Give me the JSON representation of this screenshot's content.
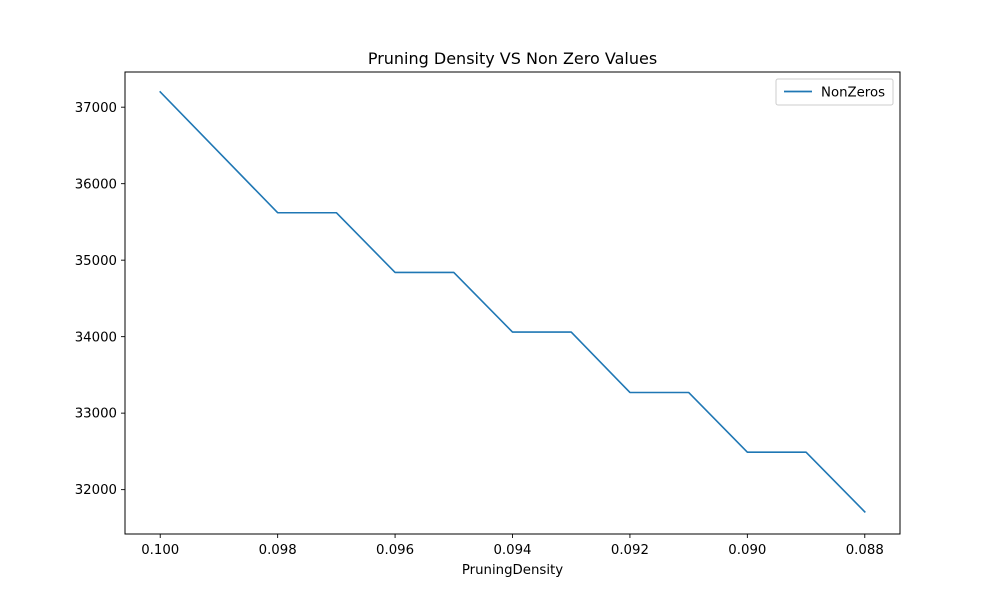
{
  "chart_data": {
    "type": "line",
    "title": "Pruning Density VS Non Zero Values",
    "xlabel": "PruningDensity",
    "ylabel": "",
    "x": [
      0.1,
      0.099,
      0.098,
      0.097,
      0.096,
      0.095,
      0.094,
      0.093,
      0.092,
      0.091,
      0.09,
      0.089,
      0.088
    ],
    "xlim": [
      0.1006,
      0.0874
    ],
    "x_reversed": true,
    "ylim": [
      31420,
      37460
    ],
    "xticks": [
      0.1,
      0.098,
      0.096,
      0.094,
      0.092,
      0.09,
      0.088
    ],
    "xtick_labels": [
      "0.100",
      "0.098",
      "0.096",
      "0.094",
      "0.092",
      "0.090",
      "0.088"
    ],
    "yticks": [
      32000,
      33000,
      34000,
      35000,
      36000,
      37000
    ],
    "ytick_labels": [
      "32000",
      "33000",
      "34000",
      "35000",
      "36000",
      "37000"
    ],
    "series": [
      {
        "name": "NonZeros",
        "color": "#1f77b4",
        "values": [
          37200,
          36410,
          35620,
          35620,
          34840,
          34840,
          34060,
          34060,
          33270,
          33270,
          32490,
          32490,
          31710
        ]
      }
    ],
    "grid": false,
    "legend": "top-right"
  }
}
